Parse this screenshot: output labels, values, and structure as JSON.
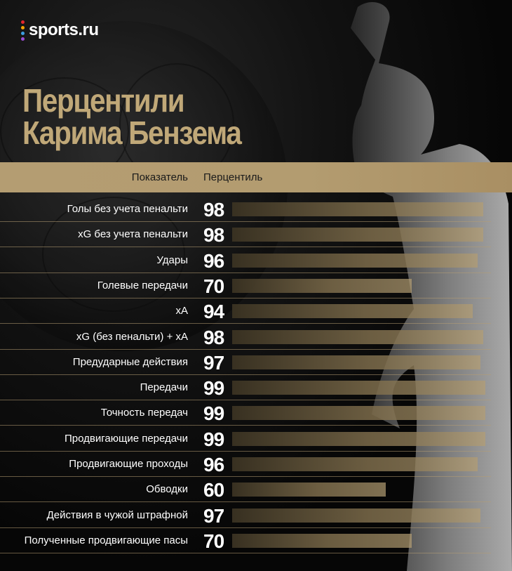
{
  "brand": {
    "logo_text": "sports.ru",
    "dot_colors": [
      "#e3262e",
      "#f5a400",
      "#3c9ee0",
      "#9a4cd4"
    ]
  },
  "title": {
    "line1": "Перцентили",
    "line2": "Карима Бензема"
  },
  "colors": {
    "accent": "#b49d72",
    "title": "#c0a878",
    "background": "#050505"
  },
  "chart_data": {
    "type": "bar",
    "orientation": "horizontal",
    "columns": [
      "Показатель",
      "Перцентиль"
    ],
    "xlim": [
      0,
      100
    ],
    "categories": [
      "Голы  без учета пенальти",
      "xG без учета пенальти",
      "Удары",
      "Голевые передачи",
      "xA",
      "xG (без пенальти) + xA",
      "Предударные действия",
      "Передачи",
      "Точность передач",
      "Продвигающие передачи",
      "Продвигающие проходы",
      "Обводки",
      "Действия в чужой штрафной",
      "Полученные продвигающие пасы"
    ],
    "values": [
      98,
      98,
      96,
      70,
      94,
      98,
      97,
      99,
      99,
      99,
      96,
      60,
      97,
      70
    ]
  }
}
